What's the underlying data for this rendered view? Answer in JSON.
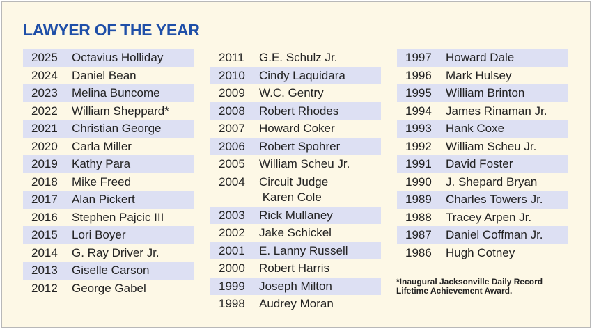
{
  "header": {
    "title": "LAWYER OF THE YEAR"
  },
  "columns": [
    [
      {
        "year": "2025",
        "name": "Octavius Holliday"
      },
      {
        "year": "2024",
        "name": "Daniel Bean"
      },
      {
        "year": "2023",
        "name": "Melina Buncome"
      },
      {
        "year": "2022",
        "name": "William Sheppard*"
      },
      {
        "year": "2021",
        "name": "Christian George"
      },
      {
        "year": "2020",
        "name": "Carla Miller"
      },
      {
        "year": "2019",
        "name": "Kathy Para"
      },
      {
        "year": "2018",
        "name": "Mike Freed"
      },
      {
        "year": "2017",
        "name": "Alan Pickert"
      },
      {
        "year": "2016",
        "name": "Stephen Pajcic III"
      },
      {
        "year": "2015",
        "name": "Lori Boyer"
      },
      {
        "year": "2014",
        "name": "G. Ray Driver Jr."
      },
      {
        "year": "2013",
        "name": "Giselle Carson"
      },
      {
        "year": "2012",
        "name": "George Gabel"
      }
    ],
    [
      {
        "year": "2011",
        "name": "G.E. Schulz Jr."
      },
      {
        "year": "2010",
        "name": "Cindy Laquidara"
      },
      {
        "year": "2009",
        "name": "W.C. Gentry"
      },
      {
        "year": "2008",
        "name": "Robert Rhodes"
      },
      {
        "year": "2007",
        "name": "Howard Coker"
      },
      {
        "year": "2006",
        "name": "Robert Spohrer"
      },
      {
        "year": "2005",
        "name": "William Scheu Jr."
      },
      {
        "year": "2004",
        "name": "Circuit Judge\n Karen Cole"
      },
      {
        "year": "2003",
        "name": "Rick Mullaney"
      },
      {
        "year": "2002",
        "name": "Jake Schickel"
      },
      {
        "year": "2001",
        "name": "E. Lanny Russell"
      },
      {
        "year": "2000",
        "name": "Robert Harris"
      },
      {
        "year": "1999",
        "name": "Joseph Milton"
      },
      {
        "year": "1998",
        "name": "Audrey Moran"
      }
    ],
    [
      {
        "year": "1997",
        "name": "Howard Dale"
      },
      {
        "year": "1996",
        "name": "Mark Hulsey"
      },
      {
        "year": "1995",
        "name": "William Brinton"
      },
      {
        "year": "1994",
        "name": "James Rinaman Jr."
      },
      {
        "year": "1993",
        "name": "Hank Coxe"
      },
      {
        "year": "1992",
        "name": "William Scheu Jr."
      },
      {
        "year": "1991",
        "name": "David Foster"
      },
      {
        "year": "1990",
        "name": "J. Shepard Bryan"
      },
      {
        "year": "1989",
        "name": "Charles Towers Jr."
      },
      {
        "year": "1988",
        "name": "Tracey Arpen Jr."
      },
      {
        "year": "1987",
        "name": "Daniel Coffman Jr."
      },
      {
        "year": "1986",
        "name": "Hugh Cotney"
      }
    ]
  ],
  "footnote": "*Inaugural Jacksonville Daily Record\nLifetime Achievement Award."
}
